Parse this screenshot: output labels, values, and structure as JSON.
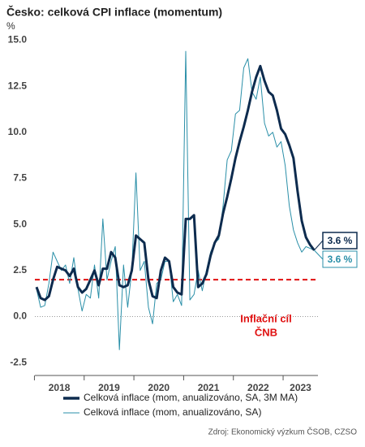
{
  "chart_data": {
    "type": "line",
    "title": "Česko: celková CPI inflace (momentum)",
    "y_label": "%",
    "categories": [
      "2018",
      null,
      null,
      null,
      null,
      null,
      null,
      null,
      null,
      null,
      null,
      null,
      "2019",
      null,
      null,
      null,
      null,
      null,
      null,
      null,
      null,
      null,
      null,
      null,
      "2020",
      null,
      null,
      null,
      null,
      null,
      null,
      null,
      null,
      null,
      null,
      null,
      "2021",
      null,
      null,
      null,
      null,
      null,
      null,
      null,
      null,
      null,
      null,
      null,
      "2022",
      null,
      null,
      null,
      null,
      null,
      null,
      null,
      null,
      null,
      null,
      null,
      "2023",
      null,
      null,
      null,
      null,
      null,
      null,
      null
    ],
    "series": [
      {
        "name": "Celková inflace (mom, anualizováno, SA, 3M MA)",
        "color": "#0d2b4e",
        "width": 3,
        "values": [
          1.6,
          1.0,
          0.9,
          1.1,
          2.0,
          2.7,
          2.6,
          2.5,
          2.2,
          2.6,
          1.6,
          1.3,
          1.5,
          2.0,
          2.5,
          1.7,
          2.6,
          2.6,
          3.5,
          3.2,
          1.7,
          1.6,
          1.7,
          2.5,
          4.4,
          4.2,
          4.0,
          2.0,
          1.1,
          1.0,
          2.5,
          3.2,
          3.0,
          1.6,
          1.3,
          1.2,
          5.3,
          5.3,
          5.5,
          1.6,
          1.8,
          2.3,
          3.3,
          4.0,
          4.4,
          5.6,
          6.5,
          7.5,
          8.6,
          9.5,
          10.3,
          11.2,
          12.2,
          13.0,
          13.6,
          12.8,
          12.2,
          12.0,
          11.2,
          10.2,
          9.9,
          9.3,
          8.6,
          6.8,
          5.2,
          4.3,
          3.9,
          3.6
        ],
        "value_labels": [
          null,
          null,
          null,
          null,
          null,
          null,
          null,
          null,
          null,
          null,
          null,
          null,
          null,
          null,
          null,
          null,
          null,
          null,
          null,
          null,
          null,
          null,
          null,
          null,
          null,
          null,
          null,
          null,
          null,
          null,
          null,
          null,
          null,
          null,
          null,
          null,
          null,
          null,
          null,
          null,
          null,
          null,
          null,
          null,
          null,
          null,
          null,
          null,
          null,
          null,
          null,
          null,
          null,
          null,
          null,
          null,
          null,
          null,
          null,
          null,
          null,
          null,
          null,
          null,
          null,
          null,
          null,
          "3.6 %"
        ]
      },
      {
        "name": "Celková inflace (mom, anualizováno, SA)",
        "color": "#2a8fa8",
        "width": 1,
        "values": [
          1.5,
          0.5,
          0.6,
          1.8,
          3.5,
          3.0,
          2.5,
          2.8,
          1.8,
          3.2,
          1.5,
          0.3,
          1.2,
          1.0,
          2.8,
          1.0,
          5.3,
          2.0,
          3.0,
          3.8,
          -1.8,
          2.8,
          0.5,
          2.5,
          7.8,
          2.5,
          3.0,
          0.5,
          -0.4,
          1.8,
          2.0,
          3.0,
          3.0,
          0.8,
          1.2,
          0.6,
          14.4,
          0.9,
          1.2,
          2.5,
          1.4,
          2.5,
          3.5,
          4.0,
          4.2,
          6.0,
          8.5,
          9.0,
          11.0,
          11.2,
          13.5,
          14.0,
          12.2,
          11.8,
          13.0,
          10.5,
          9.8,
          10.0,
          9.2,
          9.5,
          8.2,
          6.0,
          4.7,
          4.0,
          3.5,
          3.8,
          3.7,
          3.6
        ],
        "value_labels": [
          null,
          null,
          null,
          null,
          null,
          null,
          null,
          null,
          null,
          null,
          null,
          null,
          null,
          null,
          null,
          null,
          null,
          null,
          null,
          null,
          null,
          null,
          null,
          null,
          null,
          null,
          null,
          null,
          null,
          null,
          null,
          null,
          null,
          null,
          null,
          null,
          null,
          null,
          null,
          null,
          null,
          null,
          null,
          null,
          null,
          null,
          null,
          null,
          null,
          null,
          null,
          null,
          null,
          null,
          null,
          null,
          null,
          null,
          null,
          null,
          null,
          null,
          null,
          null,
          null,
          null,
          null,
          "3.6 %"
        ]
      }
    ],
    "ylim": [
      -3.2,
      15.2
    ],
    "yticks": [
      {
        "value": -2.5,
        "label": "-2.5"
      },
      {
        "value": 0,
        "label": "0.0"
      },
      {
        "value": 2.5,
        "label": "2.5"
      },
      {
        "value": 5,
        "label": "5.0"
      },
      {
        "value": 7.5,
        "label": "7.5"
      },
      {
        "value": 10,
        "label": "10.0"
      },
      {
        "value": 12.5,
        "label": "12.5"
      },
      {
        "value": 15,
        "label": "15.0"
      }
    ],
    "target": {
      "value": 2,
      "label": [
        "Inflační cíl",
        "ČNB"
      ],
      "color": "#e01010"
    },
    "source": "Zdroj: Ekonomický výzkum ČSOB, CZSO"
  }
}
